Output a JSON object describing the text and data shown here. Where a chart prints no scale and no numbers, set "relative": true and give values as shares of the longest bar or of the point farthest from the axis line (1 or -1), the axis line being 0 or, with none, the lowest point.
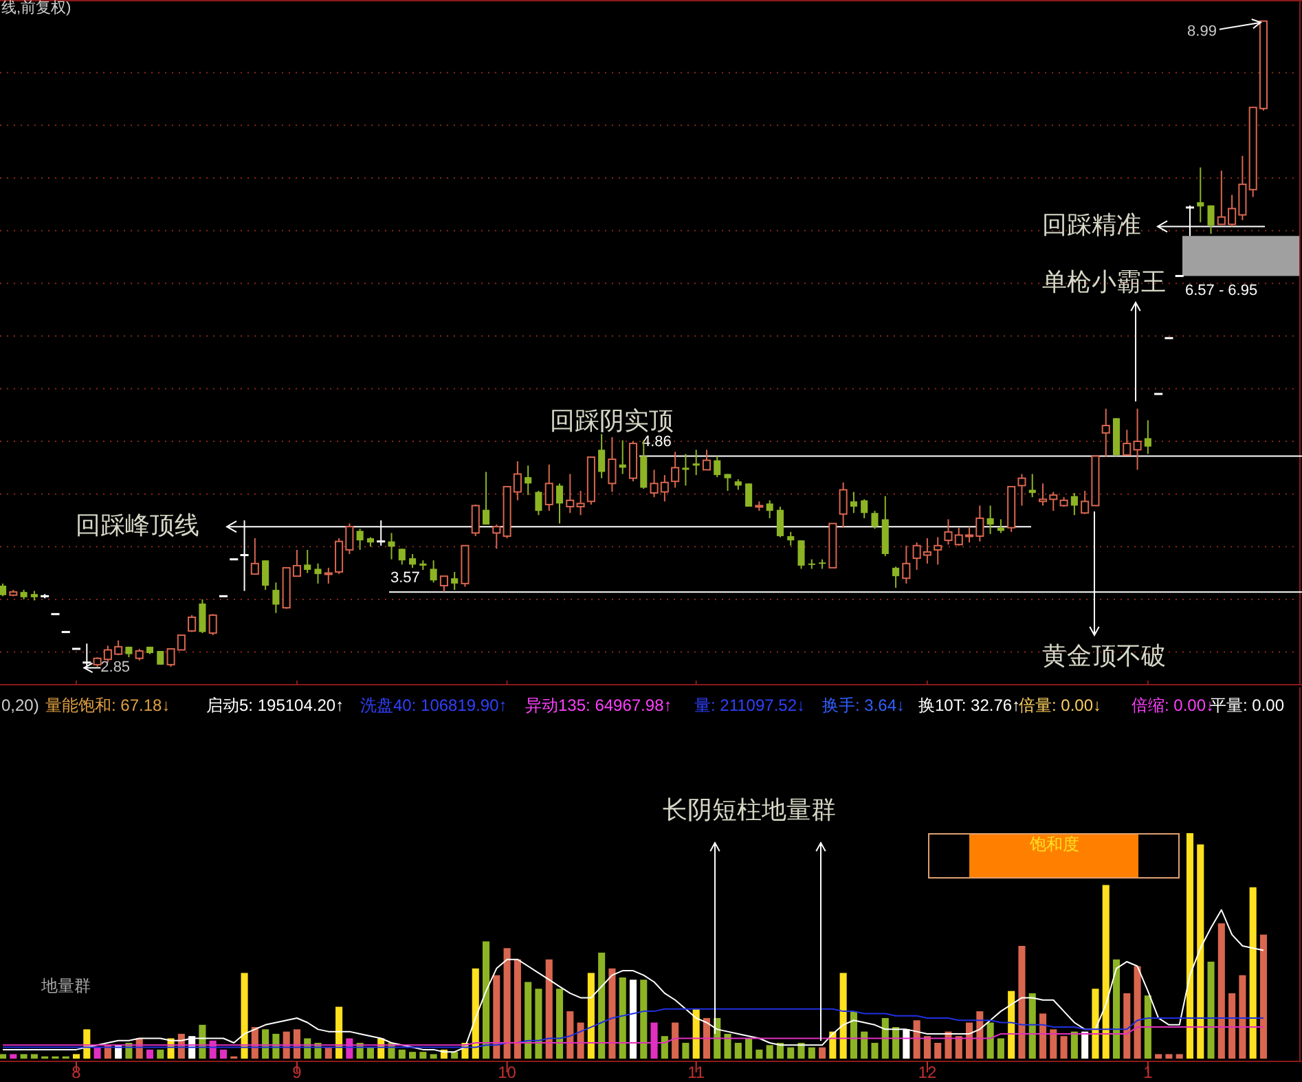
{
  "chart_data": [
    {
      "type": "candlestick",
      "title": "线,前复权)",
      "categories": [
        null,
        null,
        null,
        null,
        null,
        null,
        null,
        "8",
        null,
        null,
        null,
        null,
        null,
        null,
        null,
        null,
        null,
        null,
        null,
        null,
        null,
        null,
        null,
        null,
        null,
        null,
        null,
        null,
        "9",
        null,
        null,
        null,
        null,
        null,
        null,
        null,
        null,
        null,
        null,
        null,
        null,
        null,
        null,
        null,
        null,
        null,
        null,
        null,
        "10",
        null,
        null,
        null,
        null,
        null,
        null,
        null,
        null,
        null,
        null,
        null,
        null,
        null,
        null,
        null,
        null,
        null,
        "11",
        null,
        null,
        null,
        null,
        null,
        null,
        null,
        null,
        null,
        null,
        null,
        null,
        null,
        null,
        null,
        null,
        null,
        null,
        null,
        null,
        null,
        "12",
        null,
        null,
        null,
        null,
        null,
        null,
        null,
        null,
        null,
        null,
        null,
        null,
        null,
        null,
        null,
        null,
        null,
        null,
        null,
        null,
        "1",
        null,
        null,
        null,
        null,
        null,
        null,
        null,
        null,
        null,
        null,
        null
      ],
      "ohlc": [
        [
          3.63,
          3.65,
          3.53,
          3.54
        ],
        [
          3.54,
          3.59,
          3.53,
          3.57
        ],
        [
          3.57,
          3.59,
          3.5,
          3.52
        ],
        [
          3.55,
          3.58,
          3.49,
          3.52
        ],
        [
          3.53,
          3.55,
          3.51,
          3.53
        ],
        [
          3.36,
          3.36,
          3.36,
          3.36
        ],
        [
          3.19,
          3.19,
          3.19,
          3.19
        ],
        [
          3.03,
          3.03,
          3.03,
          3.03
        ],
        [
          2.9,
          3.08,
          2.85,
          2.9
        ],
        [
          2.88,
          2.95,
          2.86,
          2.94
        ],
        [
          2.93,
          3.06,
          2.9,
          3.02
        ],
        [
          2.98,
          3.11,
          2.97,
          3.05
        ],
        [
          3.05,
          3.05,
          2.95,
          2.98
        ],
        [
          2.94,
          3.03,
          2.92,
          3.01
        ],
        [
          3.05,
          3.05,
          2.98,
          2.99
        ],
        [
          3.01,
          3.01,
          2.88,
          2.88
        ],
        [
          2.88,
          3.03,
          2.86,
          3.03
        ],
        [
          3.02,
          3.16,
          3.02,
          3.16
        ],
        [
          3.2,
          3.35,
          3.19,
          3.33
        ],
        [
          3.46,
          3.5,
          3.18,
          3.19
        ],
        [
          3.18,
          3.36,
          3.16,
          3.35
        ],
        [
          3.53,
          3.53,
          3.53,
          3.53
        ],
        [
          3.88,
          3.88,
          3.88,
          3.88
        ],
        [
          3.92,
          4.25,
          3.58,
          3.92
        ],
        [
          3.74,
          4.08,
          3.74,
          3.84
        ],
        [
          3.87,
          3.87,
          3.59,
          3.63
        ],
        [
          3.59,
          3.66,
          3.37,
          3.45
        ],
        [
          3.42,
          3.8,
          3.41,
          3.8
        ],
        [
          3.72,
          3.97,
          3.72,
          3.82
        ],
        [
          3.83,
          3.97,
          3.75,
          3.78
        ],
        [
          3.79,
          3.84,
          3.65,
          3.74
        ],
        [
          3.74,
          3.8,
          3.65,
          3.75
        ],
        [
          3.76,
          4.08,
          3.74,
          4.05
        ],
        [
          3.97,
          4.22,
          3.93,
          4.19
        ],
        [
          4.15,
          4.17,
          3.97,
          4.06
        ],
        [
          4.08,
          4.09,
          4.0,
          4.04
        ],
        [
          4.05,
          4.25,
          4.01,
          4.05
        ],
        [
          4.05,
          4.13,
          3.88,
          4.0
        ],
        [
          3.98,
          3.98,
          3.83,
          3.87
        ],
        [
          3.89,
          3.93,
          3.8,
          3.83
        ],
        [
          3.84,
          3.87,
          3.78,
          3.82
        ],
        [
          3.79,
          3.87,
          3.66,
          3.68
        ],
        [
          3.63,
          3.72,
          3.57,
          3.72
        ],
        [
          3.7,
          3.76,
          3.59,
          3.65
        ],
        [
          3.65,
          4.01,
          3.62,
          4.01
        ],
        [
          4.13,
          4.4,
          4.1,
          4.39
        ],
        [
          4.35,
          4.71,
          4.21,
          4.21
        ],
        [
          4.13,
          4.21,
          3.98,
          4.19
        ],
        [
          4.1,
          4.57,
          4.08,
          4.57
        ],
        [
          4.52,
          4.81,
          4.44,
          4.69
        ],
        [
          4.66,
          4.77,
          4.49,
          4.6
        ],
        [
          4.52,
          4.53,
          4.3,
          4.34
        ],
        [
          4.4,
          4.78,
          4.34,
          4.6
        ],
        [
          4.58,
          4.6,
          4.22,
          4.41
        ],
        [
          4.38,
          4.69,
          4.32,
          4.44
        ],
        [
          4.38,
          4.53,
          4.3,
          4.41
        ],
        [
          4.43,
          4.85,
          4.4,
          4.85
        ],
        [
          4.92,
          5.07,
          4.65,
          4.71
        ],
        [
          4.6,
          5.04,
          4.52,
          4.83
        ],
        [
          4.78,
          5.01,
          4.69,
          4.75
        ],
        [
          4.65,
          5.0,
          4.62,
          4.98
        ],
        [
          4.86,
          5.01,
          4.55,
          4.56
        ],
        [
          4.51,
          4.73,
          4.47,
          4.6
        ],
        [
          4.52,
          4.68,
          4.43,
          4.61
        ],
        [
          4.62,
          4.9,
          4.56,
          4.75
        ],
        [
          4.75,
          4.88,
          4.58,
          4.73
        ],
        [
          4.79,
          4.92,
          4.68,
          4.77
        ],
        [
          4.73,
          4.92,
          4.73,
          4.82
        ],
        [
          4.82,
          4.86,
          4.66,
          4.68
        ],
        [
          4.69,
          4.69,
          4.53,
          4.65
        ],
        [
          4.62,
          4.64,
          4.54,
          4.58
        ],
        [
          4.6,
          4.6,
          4.38,
          4.38
        ],
        [
          4.38,
          4.43,
          4.34,
          4.39
        ],
        [
          4.41,
          4.44,
          4.27,
          4.34
        ],
        [
          4.35,
          4.38,
          4.09,
          4.1
        ],
        [
          4.1,
          4.14,
          4.01,
          4.06
        ],
        [
          4.06,
          4.06,
          3.79,
          3.82
        ],
        [
          3.84,
          3.88,
          3.79,
          3.83
        ],
        [
          3.85,
          3.88,
          3.79,
          3.84
        ],
        [
          3.8,
          4.22,
          3.8,
          4.22
        ],
        [
          4.31,
          4.61,
          4.18,
          4.54
        ],
        [
          4.43,
          4.52,
          4.32,
          4.38
        ],
        [
          4.44,
          4.45,
          4.27,
          4.32
        ],
        [
          4.32,
          4.34,
          4.17,
          4.19
        ],
        [
          4.26,
          4.48,
          3.91,
          3.93
        ],
        [
          3.8,
          3.81,
          3.61,
          3.72
        ],
        [
          3.7,
          4.01,
          3.65,
          3.84
        ],
        [
          3.89,
          4.04,
          3.78,
          4.01
        ],
        [
          3.92,
          4.08,
          3.84,
          3.95
        ],
        [
          3.97,
          4.09,
          3.83,
          4.01
        ],
        [
          4.06,
          4.26,
          4.02,
          4.14
        ],
        [
          4.02,
          4.18,
          4.01,
          4.11
        ],
        [
          4.1,
          4.19,
          4.04,
          4.11
        ],
        [
          4.1,
          4.39,
          4.05,
          4.27
        ],
        [
          4.27,
          4.39,
          4.12,
          4.21
        ],
        [
          4.18,
          4.26,
          4.13,
          4.15
        ],
        [
          4.18,
          4.57,
          4.14,
          4.57
        ],
        [
          4.58,
          4.69,
          4.39,
          4.65
        ],
        [
          4.54,
          4.69,
          4.47,
          4.51
        ],
        [
          4.43,
          4.6,
          4.39,
          4.45
        ],
        [
          4.45,
          4.52,
          4.34,
          4.49
        ],
        [
          4.39,
          4.47,
          4.38,
          4.44
        ],
        [
          4.48,
          4.51,
          4.3,
          4.39
        ],
        [
          4.32,
          4.53,
          4.31,
          4.43
        ],
        [
          4.39,
          4.86,
          4.39,
          4.86
        ],
        [
          5.08,
          5.31,
          4.85,
          5.15
        ],
        [
          5.22,
          5.22,
          4.86,
          4.87
        ],
        [
          4.87,
          5.11,
          4.87,
          4.98
        ],
        [
          4.92,
          5.31,
          4.73,
          5.0
        ],
        [
          5.03,
          5.2,
          4.88,
          4.95
        ],
        [
          5.45,
          5.45,
          5.45,
          5.45
        ],
        [
          5.98,
          5.98,
          5.98,
          5.98
        ],
        [
          6.57,
          6.57,
          6.57,
          6.57
        ],
        [
          7.22,
          7.24,
          6.95,
          7.22
        ],
        [
          7.27,
          7.6,
          7.08,
          7.23
        ],
        [
          7.24,
          7.24,
          6.97,
          7.05
        ],
        [
          7.06,
          7.57,
          7.06,
          7.13
        ],
        [
          7.06,
          7.34,
          7.04,
          7.21
        ],
        [
          7.15,
          7.71,
          7.1,
          7.44
        ],
        [
          7.39,
          8.17,
          7.32,
          8.17
        ],
        [
          8.16,
          8.99,
          8.14,
          8.99
        ]
      ],
      "colors": [
        "#8db424",
        "#d9664f",
        "#8db424",
        "#8db424",
        "#ffffff",
        "#ffffff",
        "#ffffff",
        "#ffffff",
        "#ffffff",
        "#d9664f",
        "#d9664f",
        "#d9664f",
        "#8db424",
        "#d9664f",
        "#8db424",
        "#8db424",
        "#d9664f",
        "#d9664f",
        "#d9664f",
        "#8db424",
        "#d9664f",
        "#ffffff",
        "#ffffff",
        "#ffffff",
        "#d9664f",
        "#8db424",
        "#8db424",
        "#d9664f",
        "#d9664f",
        "#8db424",
        "#8db424",
        "#d9664f",
        "#d9664f",
        "#d9664f",
        "#8db424",
        "#8db424",
        "#ffffff",
        "#8db424",
        "#8db424",
        "#8db424",
        "#8db424",
        "#8db424",
        "#d9664f",
        "#8db424",
        "#d9664f",
        "#d9664f",
        "#8db424",
        "#d9664f",
        "#d9664f",
        "#d9664f",
        "#8db424",
        "#8db424",
        "#d9664f",
        "#8db424",
        "#d9664f",
        "#d9664f",
        "#d9664f",
        "#8db424",
        "#d9664f",
        "#8db424",
        "#d9664f",
        "#8db424",
        "#d9664f",
        "#d9664f",
        "#d9664f",
        "#8db424",
        "#8db424",
        "#d9664f",
        "#8db424",
        "#8db424",
        "#8db424",
        "#8db424",
        "#d9664f",
        "#8db424",
        "#8db424",
        "#8db424",
        "#8db424",
        "#8db424",
        "#8db424",
        "#d9664f",
        "#d9664f",
        "#8db424",
        "#8db424",
        "#8db424",
        "#8db424",
        "#8db424",
        "#d9664f",
        "#d9664f",
        "#d9664f",
        "#d9664f",
        "#d9664f",
        "#d9664f",
        "#d9664f",
        "#d9664f",
        "#8db424",
        "#8db424",
        "#d9664f",
        "#d9664f",
        "#8db424",
        "#d9664f",
        "#d9664f",
        "#d9664f",
        "#8db424",
        "#d9664f",
        "#d9664f",
        "#d9664f",
        "#8db424",
        "#d9664f",
        "#d9664f",
        "#8db424",
        "#ffffff",
        "#ffffff",
        "#ffffff",
        "#ffffff",
        "#8db424",
        "#8db424",
        "#d9664f",
        "#d9664f",
        "#d9664f",
        "#d9664f",
        "#d9664f"
      ],
      "ylim": [
        2.69,
        9.19
      ],
      "yticks": [
        {
          "value": 3,
          "label": null
        },
        {
          "value": 3.5,
          "label": null
        },
        {
          "value": 4,
          "label": null
        },
        {
          "value": 4.5,
          "label": null
        },
        {
          "value": 5,
          "label": null
        },
        {
          "value": 5.5,
          "label": null
        },
        {
          "value": 6,
          "label": null
        },
        {
          "value": 6.5,
          "label": null
        },
        {
          "value": 7,
          "label": null
        },
        {
          "value": 7.5,
          "label": null
        },
        {
          "value": 8,
          "label": null
        },
        {
          "value": 8.5,
          "label": null
        }
      ],
      "grid": "y",
      "tick_labels": false,
      "ref_lines": [
        {
          "axis": "y",
          "value": 4.19,
          "label": "回踩峰顶线",
          "color": "#ffffff"
        },
        {
          "axis": "y",
          "value": 4.86,
          "label": "4.86",
          "color": "#ffffff"
        },
        {
          "axis": "y",
          "value": 3.57,
          "label": "3.57",
          "color": "#ffffff"
        },
        {
          "axis": "y",
          "value": 7.04,
          "label": "回踩精准",
          "color": "#ffffff"
        }
      ],
      "bands": [
        {
          "axis": "y",
          "from": 6.57,
          "to": 6.95,
          "label": "6.57 - 6.95",
          "color": "#a0a0a0"
        }
      ],
      "annotations": [
        "回踩阴实顶",
        "单枪小霸王",
        "黄金顶不破",
        "2.85",
        "8.99"
      ]
    },
    {
      "type": "bar",
      "relative": true,
      "categories": [
        null,
        null,
        null,
        null,
        null,
        null,
        null,
        "8",
        null,
        null,
        null,
        null,
        null,
        null,
        null,
        null,
        null,
        null,
        null,
        null,
        null,
        null,
        null,
        null,
        null,
        null,
        null,
        null,
        "9",
        null,
        null,
        null,
        null,
        null,
        null,
        null,
        null,
        null,
        null,
        null,
        null,
        null,
        null,
        null,
        null,
        null,
        null,
        null,
        "10",
        null,
        null,
        null,
        null,
        null,
        null,
        null,
        null,
        null,
        null,
        null,
        null,
        null,
        null,
        null,
        null,
        null,
        "11",
        null,
        null,
        null,
        null,
        null,
        null,
        null,
        null,
        null,
        null,
        null,
        null,
        null,
        null,
        null,
        null,
        null,
        null,
        null,
        null,
        null,
        "12",
        null,
        null,
        null,
        null,
        null,
        null,
        null,
        null,
        null,
        null,
        null,
        null,
        null,
        null,
        null,
        null,
        null,
        null,
        null,
        null,
        "1",
        null,
        null,
        null,
        null,
        null,
        null,
        null,
        null,
        null,
        null,
        null
      ],
      "series": [
        {
          "type": "bar",
          "values": [
            0.02,
            0.02,
            0.02,
            0.02,
            0.01,
            0.01,
            0.01,
            0.02,
            0.13,
            0.05,
            0.06,
            0.06,
            0.07,
            0.09,
            0.04,
            0.04,
            0.09,
            0.11,
            0.1,
            0.15,
            0.08,
            0.04,
            0.01,
            0.38,
            0.14,
            0.13,
            0.11,
            0.12,
            0.13,
            0.09,
            0.07,
            0.05,
            0.23,
            0.09,
            0.07,
            0.05,
            0.09,
            0.07,
            0.04,
            0.03,
            0.03,
            0.02,
            0.04,
            0.03,
            0.07,
            0.4,
            0.52,
            0.37,
            0.49,
            0.44,
            0.34,
            0.31,
            0.44,
            0.31,
            0.21,
            0.16,
            0.38,
            0.47,
            0.4,
            0.36,
            0.35,
            0.35,
            0.16,
            0.1,
            0.16,
            0.07,
            0.22,
            0.18,
            0.18,
            0.11,
            0.07,
            0.09,
            0.04,
            0.06,
            0.07,
            0.05,
            0.07,
            0.05,
            0.05,
            0.12,
            0.38,
            0.21,
            0.12,
            0.07,
            0.18,
            0.14,
            0.13,
            0.17,
            0.1,
            0.07,
            0.12,
            0.1,
            0.16,
            0.21,
            0.16,
            0.09,
            0.3,
            0.5,
            0.29,
            0.2,
            0.13,
            0.1,
            0.12,
            0.12,
            0.31,
            0.77,
            0.44,
            0.29,
            0.41,
            0.28,
            0.02,
            0.02,
            0.02,
            1,
            0.95,
            0.43,
            0.6,
            0.29,
            0.37,
            0.76,
            0.55
          ],
          "colors": [
            "#8db424",
            "#e030c0",
            "#8db424",
            "#8db424",
            "#8db424",
            "#8db424",
            "#8db424",
            "#ffe020",
            "#ffe020",
            "#e030c0",
            "#d9664f",
            "#ffffff",
            "#8db424",
            "#d9664f",
            "#e030c0",
            "#8db424",
            "#ffe020",
            "#d9664f",
            "#ffffff",
            "#8db424",
            "#e030c0",
            "#e030c0",
            "#d9664f",
            "#ffe020",
            "#d9664f",
            "#8db424",
            "#8db424",
            "#d9664f",
            "#d9664f",
            "#8db424",
            "#8db424",
            "#d9664f",
            "#ffe020",
            "#e030c0",
            "#8db424",
            "#8db424",
            "#ffe020",
            "#8db424",
            "#8db424",
            "#8db424",
            "#8db424",
            "#8db424",
            "#ffe020",
            "#8db424",
            "#ffe020",
            "#ffe020",
            "#8db424",
            "#d9664f",
            "#d9664f",
            "#d9664f",
            "#8db424",
            "#8db424",
            "#d9664f",
            "#8db424",
            "#d9664f",
            "#d9664f",
            "#ffe020",
            "#8db424",
            "#d9664f",
            "#8db424",
            "#ffffff",
            "#8db424",
            "#e030c0",
            "#8db424",
            "#d9664f",
            "#8db424",
            "#ffe020",
            "#d9664f",
            "#8db424",
            "#8db424",
            "#8db424",
            "#8db424",
            "#8db424",
            "#8db424",
            "#8db424",
            "#8db424",
            "#8db424",
            "#8db424",
            "#d9664f",
            "#ffe020",
            "#ffe020",
            "#8db424",
            "#8db424",
            "#8db424",
            "#8db424",
            "#8db424",
            "#ffffff",
            "#d9664f",
            "#d9664f",
            "#d9664f",
            "#d9664f",
            "#d9664f",
            "#d9664f",
            "#d9664f",
            "#8db424",
            "#8db424",
            "#ffe020",
            "#d9664f",
            "#8db424",
            "#d9664f",
            "#d9664f",
            "#d9664f",
            "#8db424",
            "#ffffff",
            "#ffe020",
            "#ffe020",
            "#8db424",
            "#d9664f",
            "#d9664f",
            "#8db424",
            "#d9664f",
            "#d9664f",
            "#d9664f",
            "#ffe020",
            "#ffe020",
            "#8db424",
            "#d9664f",
            "#d9664f",
            "#d9664f",
            "#ffe020",
            "#d9664f"
          ]
        },
        {
          "type": "line",
          "color": "#ffffff",
          "values": [
            0.04,
            0.04,
            0.04,
            0.04,
            0.04,
            0.04,
            0.04,
            0.04,
            0.05,
            0.06,
            0.07,
            0.08,
            0.08,
            0.09,
            0.09,
            0.09,
            0.08,
            0.08,
            0.09,
            0.09,
            0.09,
            0.09,
            0.07,
            0.11,
            0.13,
            0.15,
            0.16,
            0.17,
            0.18,
            0.16,
            0.13,
            0.12,
            0.12,
            0.12,
            0.11,
            0.1,
            0.09,
            0.07,
            0.06,
            0.05,
            0.04,
            0.04,
            0.03,
            0.03,
            0.05,
            0.18,
            0.3,
            0.4,
            0.44,
            0.44,
            0.41,
            0.38,
            0.35,
            0.32,
            0.29,
            0.27,
            0.27,
            0.32,
            0.37,
            0.39,
            0.39,
            0.37,
            0.34,
            0.29,
            0.26,
            0.22,
            0.18,
            0.16,
            0.13,
            0.12,
            0.11,
            0.1,
            0.09,
            0.07,
            0.06,
            0.06,
            0.06,
            0.06,
            0.06,
            0.11,
            0.15,
            0.17,
            0.16,
            0.15,
            0.13,
            0.13,
            0.13,
            0.12,
            0.11,
            0.11,
            0.11,
            0.11,
            0.11,
            0.13,
            0.17,
            0.21,
            0.24,
            0.27,
            0.27,
            0.26,
            0.26,
            0.21,
            0.16,
            0.13,
            0.13,
            0.24,
            0.4,
            0.43,
            0.41,
            0.3,
            0.18,
            0.15,
            0.15,
            0.37,
            0.49,
            0.58,
            0.66,
            0.55,
            0.5,
            0.49,
            0.48
          ]
        },
        {
          "type": "line",
          "color": "#2030e0",
          "values": [
            0.05,
            0.05,
            0.05,
            0.05,
            0.05,
            0.05,
            0.05,
            0.05,
            0.05,
            0.05,
            0.05,
            0.05,
            0.05,
            0.05,
            0.05,
            0.05,
            0.05,
            0.05,
            0.05,
            0.05,
            0.05,
            0.05,
            0.05,
            0.05,
            0.05,
            0.05,
            0.05,
            0.05,
            0.05,
            0.05,
            0.05,
            0.05,
            0.05,
            0.05,
            0.05,
            0.05,
            0.05,
            0.05,
            0.05,
            0.05,
            0.05,
            0.05,
            0.05,
            0.05,
            0.05,
            0.05,
            0.06,
            0.06,
            0.07,
            0.07,
            0.08,
            0.08,
            0.09,
            0.09,
            0.1,
            0.12,
            0.14,
            0.16,
            0.18,
            0.19,
            0.2,
            0.21,
            0.21,
            0.22,
            0.22,
            0.22,
            0.22,
            0.22,
            0.22,
            0.22,
            0.22,
            0.22,
            0.22,
            0.22,
            0.22,
            0.22,
            0.22,
            0.22,
            0.22,
            0.22,
            0.21,
            0.21,
            0.2,
            0.2,
            0.2,
            0.19,
            0.19,
            0.19,
            0.18,
            0.18,
            0.18,
            0.17,
            0.17,
            0.17,
            0.17,
            0.16,
            0.16,
            0.15,
            0.15,
            0.15,
            0.14,
            0.14,
            0.14,
            0.13,
            0.13,
            0.13,
            0.13,
            0.13,
            0.17,
            0.18,
            0.18,
            0.18,
            0.18,
            0.18,
            0.18,
            0.18,
            0.18,
            0.18,
            0.18,
            0.18,
            0.18
          ]
        },
        {
          "type": "line",
          "color": "#e030c0",
          "values": [
            0.06,
            0.06,
            0.06,
            0.06,
            0.06,
            0.06,
            0.06,
            0.06,
            0.06,
            0.06,
            0.06,
            0.06,
            0.06,
            0.06,
            0.06,
            0.06,
            0.06,
            0.06,
            0.06,
            0.06,
            0.06,
            0.06,
            0.06,
            0.06,
            0.06,
            0.06,
            0.06,
            0.06,
            0.06,
            0.06,
            0.06,
            0.06,
            0.06,
            0.06,
            0.06,
            0.06,
            0.06,
            0.06,
            0.06,
            0.06,
            0.06,
            0.06,
            0.06,
            0.06,
            0.06,
            0.07,
            0.07,
            0.07,
            0.07,
            0.07,
            0.07,
            0.07,
            0.07,
            0.07,
            0.07,
            0.07,
            0.07,
            0.07,
            0.07,
            0.07,
            0.07,
            0.07,
            0.07,
            0.07,
            0.09,
            0.09,
            0.09,
            0.09,
            0.09,
            0.09,
            0.09,
            0.09,
            0.09,
            0.09,
            0.09,
            0.09,
            0.09,
            0.09,
            0.09,
            0.09,
            0.09,
            0.09,
            0.09,
            0.09,
            0.09,
            0.09,
            0.09,
            0.09,
            0.09,
            0.09,
            0.09,
            0.09,
            0.09,
            0.09,
            0.09,
            0.11,
            0.11,
            0.11,
            0.11,
            0.11,
            0.11,
            0.11,
            0.11,
            0.11,
            0.11,
            0.11,
            0.11,
            0.11,
            0.14,
            0.14,
            0.14,
            0.14,
            0.14,
            0.14,
            0.14,
            0.14,
            0.14,
            0.14,
            0.14,
            0.14,
            0.14
          ]
        }
      ],
      "annotations": [
        "0,20)",
        "量能饱和: 67.18↓",
        "启动5: 195104.20↑",
        "洗盘40: 106819.90↑",
        "异动135: 64967.98↑",
        "量: 211097.52↓",
        "换手: 3.64↓",
        "换10T: 32.76↑",
        "倍量: 0.00↓",
        "倍缩: 0.00↓",
        "平量: 0.00",
        "长阴短柱地量群",
        "地量群",
        "饱和度"
      ]
    }
  ]
}
